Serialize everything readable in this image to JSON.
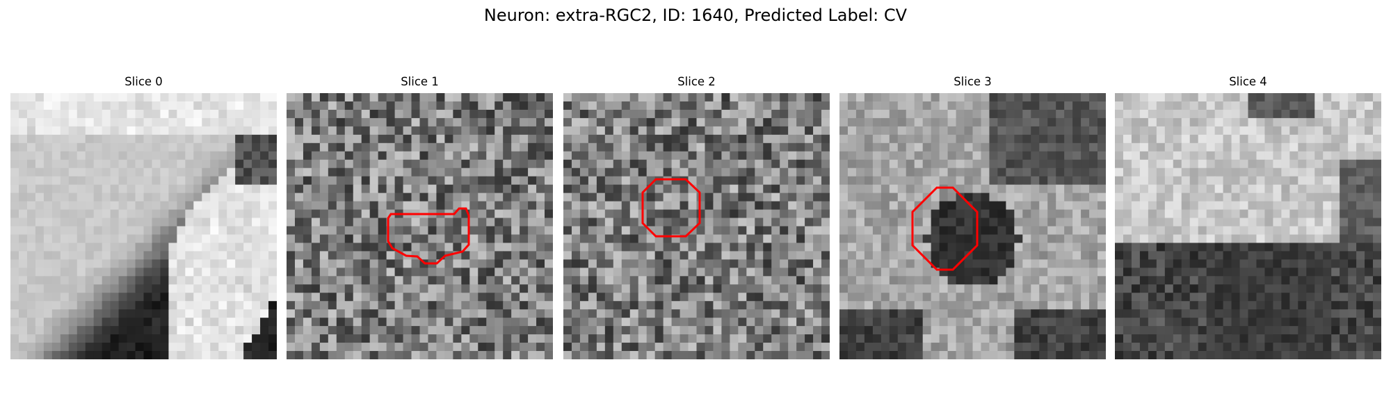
{
  "figure": {
    "title": "Neuron: extra-RGC2, ID: 1640, Predicted Label: CV"
  },
  "panels": [
    {
      "title": "Slice 0",
      "has_contour": false,
      "pattern": "diagonal-bright-band"
    },
    {
      "title": "Slice 1",
      "has_contour": true,
      "pattern": "noisy-gray"
    },
    {
      "title": "Slice 2",
      "has_contour": true,
      "pattern": "noisy-gray"
    },
    {
      "title": "Slice 3",
      "has_contour": true,
      "pattern": "dark-blob-center"
    },
    {
      "title": "Slice 4",
      "has_contour": false,
      "pattern": "bright-top-dark-bottom"
    }
  ],
  "colors": {
    "contour": "#ff0000",
    "background": "#ffffff"
  }
}
